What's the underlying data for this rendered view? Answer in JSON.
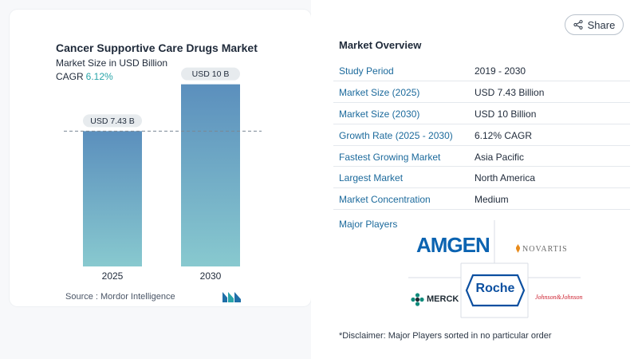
{
  "chart_data": {
    "type": "bar",
    "title": "Cancer Supportive Care Drugs Market",
    "subtitle": "Market Size in USD Billion",
    "cagr_label": "CAGR",
    "cagr_value": "6.12%",
    "categories": [
      "2025",
      "2030"
    ],
    "values": [
      7.43,
      10
    ],
    "data_labels": [
      "USD 7.43 B",
      "USD 10 B"
    ],
    "ylim": [
      0,
      12
    ],
    "grid": false,
    "reference_line_value": 7.43,
    "colors": {
      "bar_top": "#5b8fbd",
      "bar_bottom": "#88c9cf",
      "label_bg": "#e7ebee",
      "ref_line": "#7a8794"
    }
  },
  "source": "Source :  Mordor Intelligence",
  "share_label": "Share",
  "overview": {
    "title": "Market Overview",
    "rows": [
      {
        "label": "Study Period",
        "value": "2019 - 2030"
      },
      {
        "label": "Market Size (2025)",
        "value": "USD 7.43 Billion"
      },
      {
        "label": "Market Size (2030)",
        "value": "USD 10 Billion"
      },
      {
        "label": "Growth Rate (2025 - 2030)",
        "value": "6.12% CAGR"
      },
      {
        "label": "Fastest Growing Market",
        "value": "Asia Pacific"
      },
      {
        "label": "Largest Market",
        "value": "North America"
      },
      {
        "label": "Market Concentration",
        "value": "Medium"
      }
    ]
  },
  "players": {
    "label": "Major Players",
    "logos": [
      "AMGEN",
      "NOVARTIS",
      "MERCK",
      "Roche",
      "Johnson&Johnson"
    ]
  },
  "disclaimer": "*Disclaimer: Major Players sorted in no particular order",
  "colors": {
    "accent": "#1c6a9c",
    "teal": "#2aa5a9"
  }
}
